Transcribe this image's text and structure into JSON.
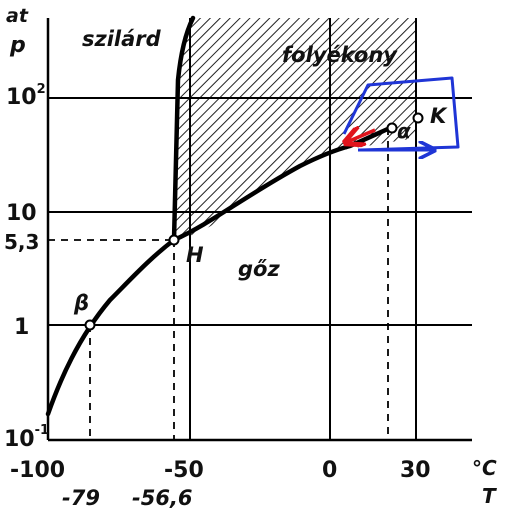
{
  "diagram": {
    "y_axis_unit": "at",
    "y_axis_symbol": "p",
    "x_axis_unit": "°C",
    "x_axis_symbol": "T",
    "y_ticks": [
      {
        "text": "10",
        "sup": "2"
      },
      {
        "text": "10",
        "sup": ""
      },
      {
        "text": "5,3",
        "sup": ""
      },
      {
        "text": "1",
        "sup": ""
      },
      {
        "text": "10",
        "sup": "-1"
      }
    ],
    "x_ticks_upper": [
      "-100",
      "-50",
      "0",
      "30"
    ],
    "x_ticks_lower": [
      "-79",
      "-56,6"
    ],
    "regions": {
      "solid": "szilárd",
      "liquid": "folyékony",
      "gas": "gőz"
    },
    "points": {
      "triple": "H",
      "critical": "K",
      "alpha": "α",
      "beta": "β"
    },
    "colors": {
      "curve": "#000000",
      "hatch": "#222222",
      "annotation_blue": "#1f35d6",
      "annotation_red": "#e0141c"
    }
  }
}
